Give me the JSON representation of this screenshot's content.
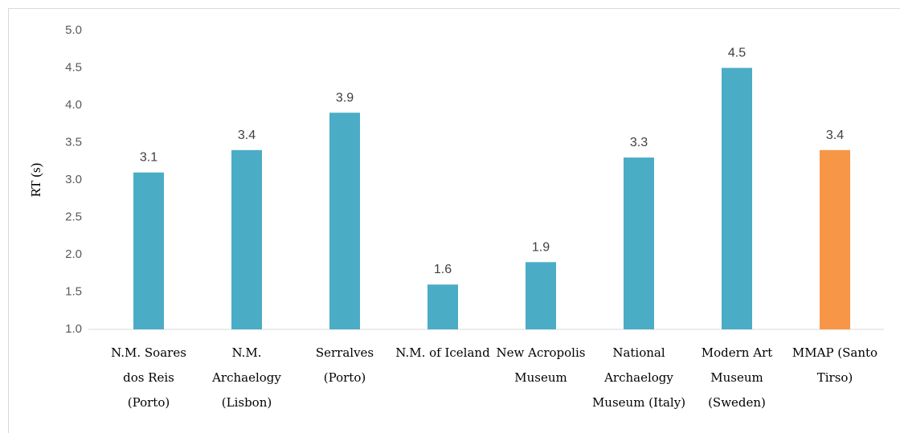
{
  "chart_data": {
    "type": "bar",
    "y_label": "RT (s)",
    "categories": [
      "N.M. Soares dos Reis (Porto)",
      "N.M. Archaelogy (Lisbon)",
      "Serralves (Porto)",
      "N.M. of Iceland",
      "New Acropolis Museum",
      "National Archaelogy Museum (Italy)",
      "Modern Art Museum (Sweden)",
      "MMAP (Santo Tirso)"
    ],
    "values": [
      3.1,
      3.4,
      3.9,
      1.6,
      1.9,
      3.3,
      4.5,
      3.4
    ],
    "colors": [
      "#4bacc6",
      "#4bacc6",
      "#4bacc6",
      "#4bacc6",
      "#4bacc6",
      "#4bacc6",
      "#4bacc6",
      "#f79646"
    ],
    "ylim": [
      1,
      5
    ],
    "yticks": [
      {
        "value": 1,
        "label": "1.0"
      },
      {
        "value": 1.5,
        "label": "1.5"
      },
      {
        "value": 2,
        "label": "2.0"
      },
      {
        "value": 2.5,
        "label": "2.5"
      },
      {
        "value": 3,
        "label": "3.0"
      },
      {
        "value": 3.5,
        "label": "3.5"
      },
      {
        "value": 4,
        "label": "4.0"
      },
      {
        "value": 4.5,
        "label": "4.5"
      },
      {
        "value": 5,
        "label": "5.0"
      }
    ],
    "grid": false
  }
}
